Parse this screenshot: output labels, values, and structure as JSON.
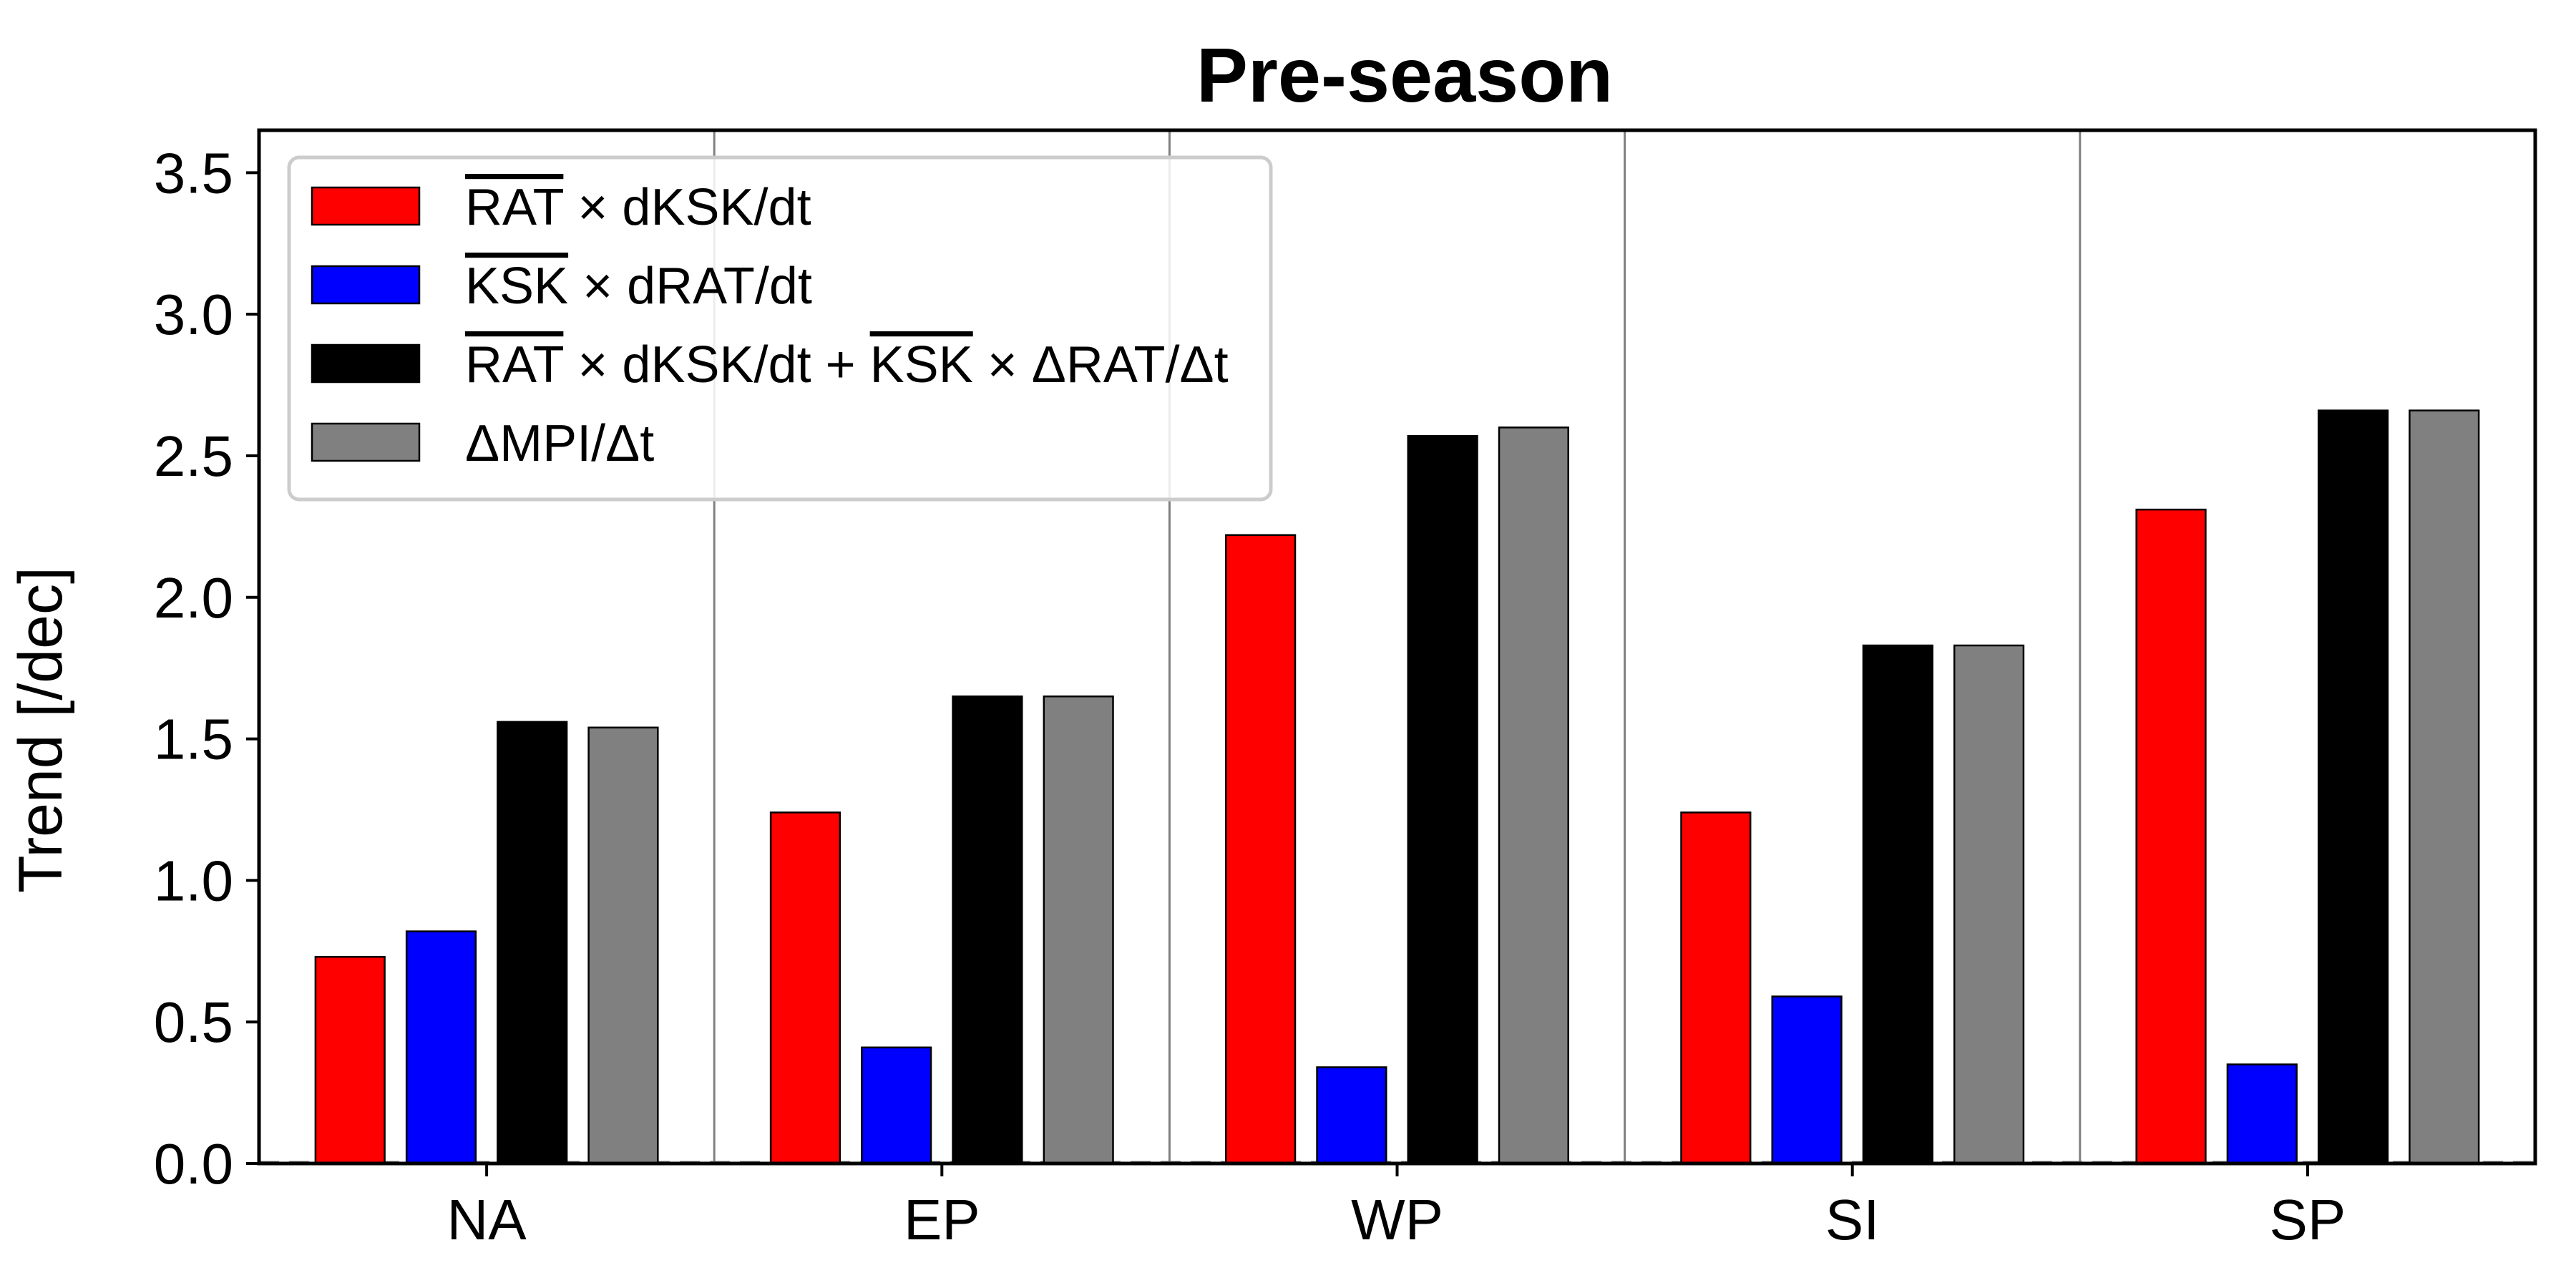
{
  "chart_data": {
    "type": "bar",
    "title": "Pre-season",
    "xlabel": "",
    "ylabel": "Trend [/dec]",
    "ylim": [
      0,
      3.65
    ],
    "yticks": [
      "0.0",
      "0.5",
      "1.0",
      "1.5",
      "2.0",
      "2.5",
      "3.0",
      "3.5"
    ],
    "categories": [
      "NA",
      "EP",
      "WP",
      "SI",
      "SP"
    ],
    "legend_position": "top-left",
    "grid": false,
    "series": [
      {
        "name": "RAT × dKSK/dt",
        "legend": {
          "over1": "RAT",
          "mid1": " × dKSK/dt"
        },
        "color": "#ff0000",
        "values": [
          0.73,
          1.24,
          2.22,
          1.24,
          2.31
        ]
      },
      {
        "name": "KSK × dRAT/dt",
        "legend": {
          "over1": "KSK",
          "mid1": " × dRAT/dt"
        },
        "color": "#0000ff",
        "values": [
          0.82,
          0.41,
          0.34,
          0.59,
          0.35
        ]
      },
      {
        "name": "RAT × dKSK/dt + KSK × ΔRAT/Δt",
        "legend": {
          "over1": "RAT",
          "mid1": " × dKSK/dt + ",
          "over2": "KSK",
          "mid2": " × ΔRAT/Δt"
        },
        "color": "#000000",
        "values": [
          1.56,
          1.65,
          2.57,
          1.83,
          2.66
        ]
      },
      {
        "name": "ΔMPI/Δt",
        "legend": {
          "mid1": "ΔMPI/Δt"
        },
        "color": "#808080",
        "values": [
          1.54,
          1.65,
          2.6,
          1.83,
          2.66
        ]
      }
    ]
  }
}
